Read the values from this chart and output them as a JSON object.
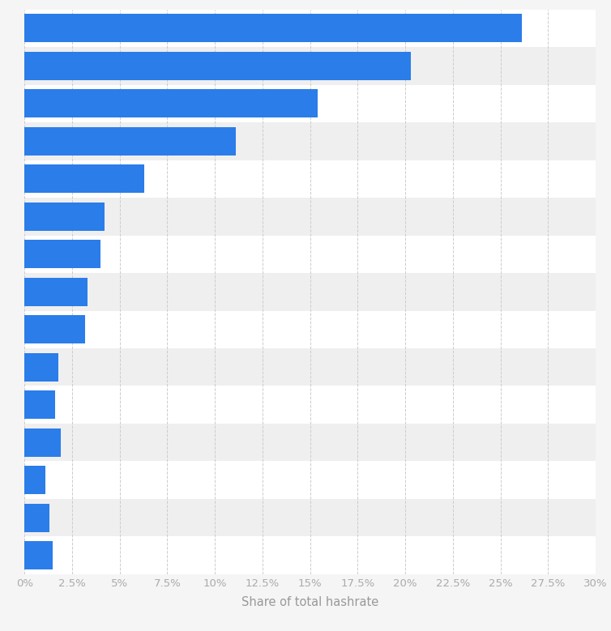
{
  "values": [
    26.1,
    20.3,
    15.4,
    11.1,
    6.3,
    4.2,
    4.0,
    3.3,
    3.2,
    1.8,
    1.6,
    1.9,
    1.1,
    1.3,
    1.5
  ],
  "bar_color": "#2b7de9",
  "background_color": "#f5f5f5",
  "row_color_odd": "#ffffff",
  "row_color_even": "#efefef",
  "xlabel": "Share of total hashrate",
  "xlim": [
    0,
    30
  ],
  "xticks": [
    0,
    2.5,
    5.0,
    7.5,
    10.0,
    12.5,
    15.0,
    17.5,
    20.0,
    22.5,
    25.0,
    27.5,
    30.0
  ],
  "xtick_labels": [
    "0%",
    "2.5%",
    "5%",
    "7.5%",
    "10%",
    "12.5%",
    "15%",
    "17.5%",
    "20%",
    "22.5%",
    "25%",
    "27.5%",
    "30%"
  ],
  "grid_color": "#cccccc",
  "tick_color": "#aaaaaa",
  "label_fontsize": 9.5,
  "xlabel_fontsize": 10.5,
  "bar_height": 0.75
}
